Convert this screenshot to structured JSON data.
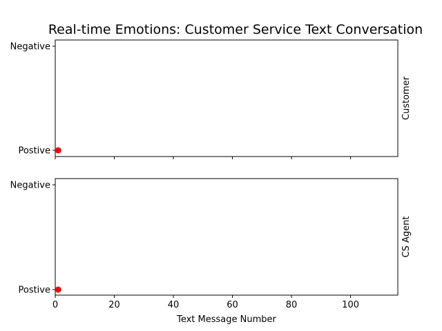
{
  "title": "Real-time Emotions: Customer Service Text Conversation",
  "chart_data": [
    {
      "type": "scatter",
      "right_label": "Customer",
      "xlim": [
        0,
        116
      ],
      "x_ticks": [
        0,
        20,
        40,
        60,
        80,
        100
      ],
      "show_x_tick_labels": false,
      "y_categories": [
        "Postive",
        "Negative"
      ],
      "xlabel": "",
      "grid": false,
      "points": [
        {
          "x": 1,
          "y": "Postive"
        }
      ],
      "marker_color": "#ff0000"
    },
    {
      "type": "scatter",
      "right_label": "CS Agent",
      "xlim": [
        0,
        116
      ],
      "x_ticks": [
        0,
        20,
        40,
        60,
        80,
        100
      ],
      "show_x_tick_labels": true,
      "y_categories": [
        "Postive",
        "Negative"
      ],
      "xlabel": "Text Message Number",
      "grid": false,
      "points": [
        {
          "x": 1,
          "y": "Postive"
        }
      ],
      "marker_color": "#ff0000"
    }
  ]
}
